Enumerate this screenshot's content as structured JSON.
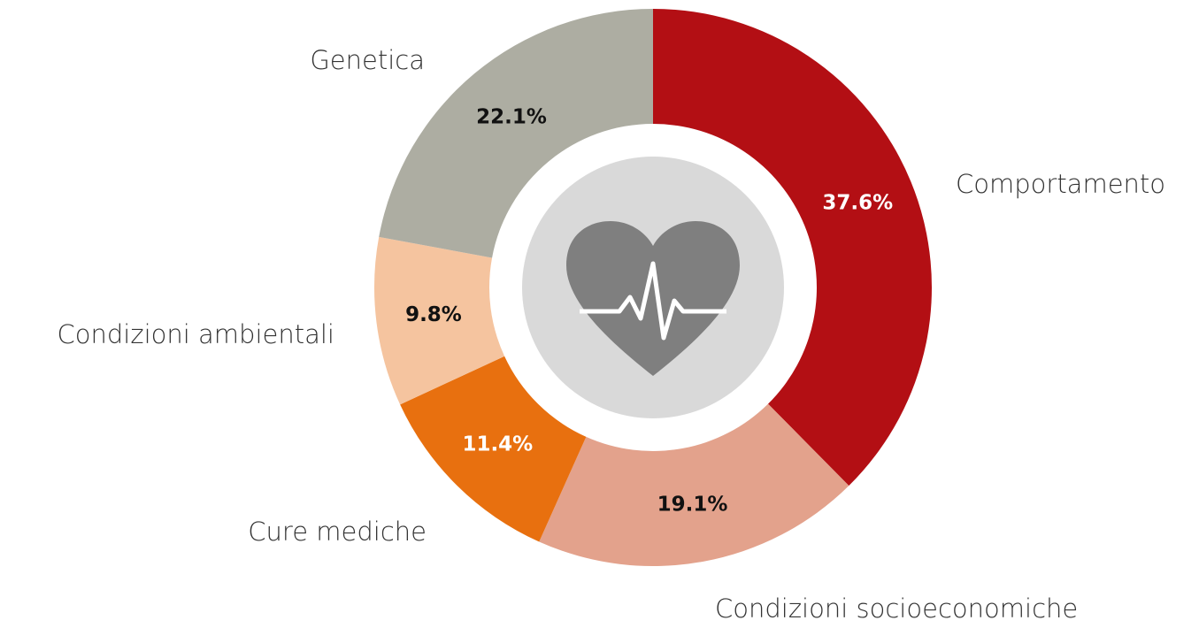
{
  "chart_data": {
    "type": "donut",
    "categories": [
      "Comportamento",
      "Condizioni socioeconomiche",
      "Cure mediche",
      "Condizioni ambientali",
      "Genetica"
    ],
    "values": [
      37.6,
      19.1,
      11.4,
      9.8,
      22.1
    ],
    "value_labels": [
      "37.6%",
      "19.1%",
      "11.4%",
      "9.8%",
      "22.1%"
    ],
    "colors": [
      "#b30f14",
      "#e3a28c",
      "#e8700f",
      "#f5c49f",
      "#adada2"
    ]
  }
}
